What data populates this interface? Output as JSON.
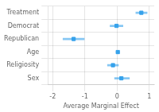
{
  "chart_data": {
    "type": "dot",
    "categories": [
      "Treatment",
      "Democrat",
      "Republican",
      "Age",
      "Religiosity",
      "Sex"
    ],
    "values": [
      0.75,
      -0.02,
      -1.35,
      0.02,
      -0.13,
      0.13
    ],
    "ci_low": [
      0.58,
      -0.22,
      -1.68,
      -0.02,
      -0.3,
      -0.08
    ],
    "ci_high": [
      0.93,
      0.18,
      -1.02,
      0.06,
      0.04,
      0.38
    ],
    "xlim": [
      -2.15,
      1.15
    ],
    "xticks": [
      -2,
      -1,
      0,
      1
    ],
    "xlabel": "Average Marginal Effect",
    "orientation": "horizontal",
    "marker": "square",
    "grid": true
  }
}
